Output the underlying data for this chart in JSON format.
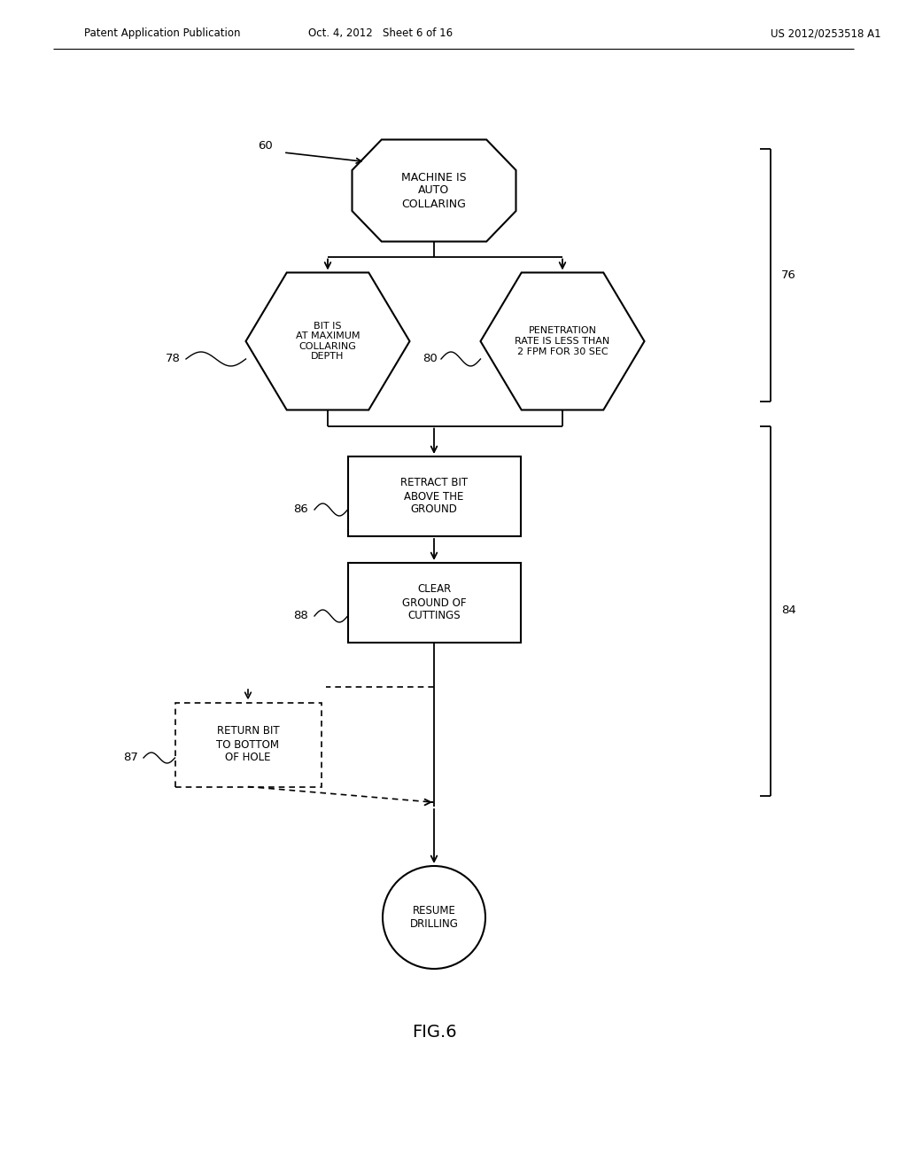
{
  "bg_color": "#ffffff",
  "header_left": "Patent Application Publication",
  "header_mid": "Oct. 4, 2012   Sheet 6 of 16",
  "header_right": "US 2012/0253518 A1",
  "fig_label": "FIG.6",
  "label_60": "60",
  "label_76": "76",
  "label_78": "78",
  "label_80": "80",
  "label_84": "84",
  "label_86": "86",
  "label_87": "87",
  "label_88": "88",
  "node_machine": "MACHINE IS\nAUTO\nCOLLARING",
  "node_bit_max": "BIT IS\nAT MAXIMUM\nCOLLARING\nDEPTH",
  "node_pen_rate": "PENETRATION\nRATE IS LESS THAN\n2 FPM FOR 30 SEC",
  "node_retract": "RETRACT BIT\nABOVE THE\nGROUND",
  "node_clear": "CLEAR\nGROUND OF\nCUTTINGS",
  "node_return": "RETURN BIT\nTO BOTTOM\nOF HOLE",
  "node_resume": "RESUME\nDRILLING",
  "line_color": "#000000",
  "text_color": "#000000",
  "font_size_nodes": 8.5,
  "font_size_header": 8.5,
  "font_size_labels": 9.5,
  "font_size_fig": 14
}
